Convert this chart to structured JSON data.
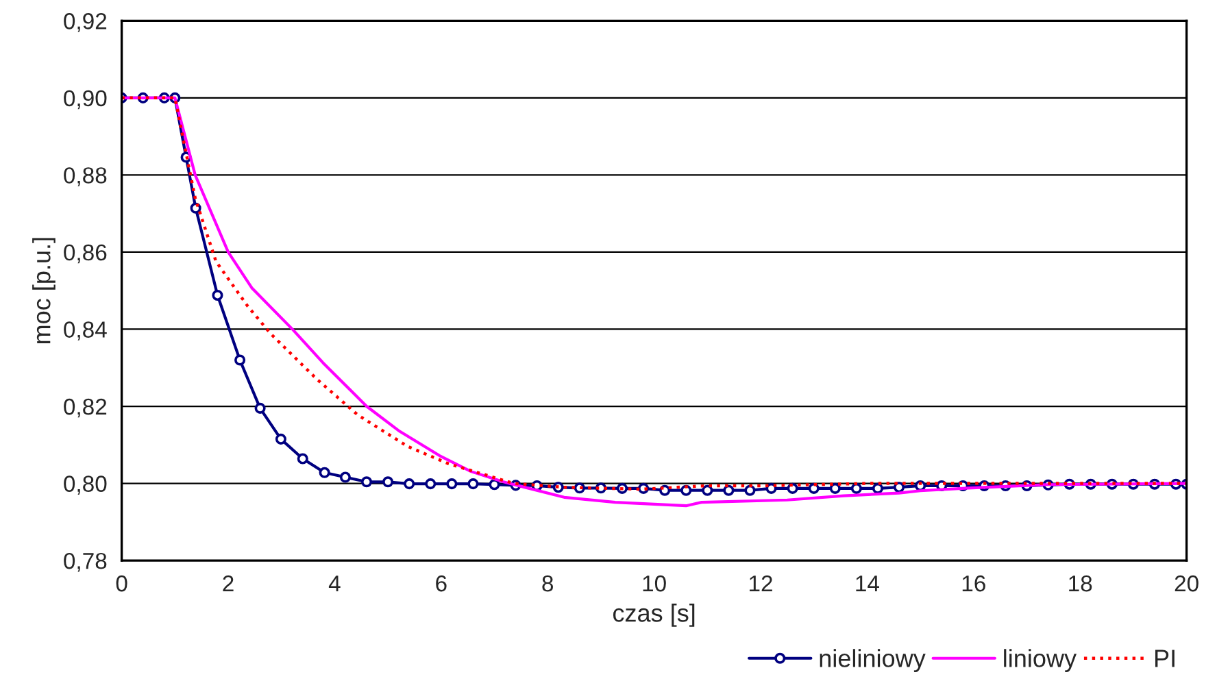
{
  "chart_data": {
    "type": "line",
    "xlabel": "czas [s]",
    "ylabel": "moc [p.u.]",
    "xlim": [
      0,
      20
    ],
    "xticks": [
      0,
      2,
      4,
      6,
      8,
      10,
      12,
      14,
      16,
      18,
      20
    ],
    "ylim": [
      0.78,
      0.92
    ],
    "yticks": [
      {
        "value": 0.78,
        "label": "0,78"
      },
      {
        "value": 0.8,
        "label": "0,80"
      },
      {
        "value": 0.82,
        "label": "0,82"
      },
      {
        "value": 0.84,
        "label": "0,84"
      },
      {
        "value": 0.86,
        "label": "0,86"
      },
      {
        "value": 0.88,
        "label": "0,88"
      },
      {
        "value": 0.9,
        "label": "0,90"
      },
      {
        "value": 0.92,
        "label": "0,92"
      }
    ],
    "grid": "y",
    "legend": "bottom right",
    "series": [
      {
        "name": "nieliniowy",
        "color": "#000080",
        "marker": "circle",
        "line_style": "solid",
        "x": [
          0,
          0.4,
          0.8,
          1.0,
          1.21,
          1.39,
          1.8,
          2.22,
          2.6,
          2.99,
          3.4,
          3.81,
          4.2,
          4.6,
          5.0,
          5.4,
          5.8,
          6.2,
          6.6,
          7.0,
          7.4,
          7.8,
          8.2,
          8.6,
          9.0,
          9.4,
          9.8,
          10.2,
          10.6,
          11.0,
          11.4,
          11.8,
          12.2,
          12.6,
          13.0,
          13.4,
          13.8,
          14.2,
          14.6,
          15.0,
          15.4,
          15.8,
          16.2,
          16.6,
          17.0,
          17.4,
          17.8,
          18.2,
          18.6,
          19.0,
          19.4,
          19.8,
          20.0
        ],
        "values": [
          0.9,
          0.9,
          0.9,
          0.9,
          0.8846,
          0.8714,
          0.8488,
          0.832,
          0.8195,
          0.8115,
          0.8064,
          0.8028,
          0.8016,
          0.8004,
          0.8004,
          0.7999,
          0.7999,
          0.7999,
          0.7999,
          0.7997,
          0.7995,
          0.7994,
          0.799,
          0.7988,
          0.7988,
          0.7987,
          0.7987,
          0.7982,
          0.7982,
          0.7982,
          0.7982,
          0.7982,
          0.7987,
          0.7987,
          0.7987,
          0.7987,
          0.7987,
          0.7987,
          0.799,
          0.7994,
          0.7994,
          0.7994,
          0.7994,
          0.7994,
          0.7994,
          0.7996,
          0.7998,
          0.7998,
          0.7998,
          0.7998,
          0.7998,
          0.7998,
          0.7998
        ]
      },
      {
        "name": "liniowy",
        "color": "#ff00ff",
        "marker": "none",
        "line_style": "solid",
        "x": [
          0,
          1.0,
          1.38,
          2.0,
          2.45,
          3.22,
          3.78,
          4.6,
          5.2,
          5.97,
          6.56,
          7.17,
          8.31,
          9.27,
          10.6,
          10.89,
          12.5,
          13.56,
          14.6,
          15.0,
          15.9,
          17.4,
          20.0
        ],
        "values": [
          0.9,
          0.9,
          0.88,
          0.86,
          0.8506,
          0.8398,
          0.8313,
          0.82,
          0.8137,
          0.8072,
          0.8031,
          0.8004,
          0.7964,
          0.7951,
          0.7942,
          0.7951,
          0.7957,
          0.7968,
          0.7975,
          0.7981,
          0.7988,
          0.7997,
          0.8
        ]
      },
      {
        "name": "PI",
        "color": "#ff0000",
        "marker": "none",
        "line_style": "dotted",
        "x": [
          0,
          1.0,
          1.38,
          1.77,
          2.37,
          2.8,
          3.66,
          4.43,
          5.37,
          6.14,
          7.17,
          7.36,
          8.31,
          9.75,
          10.99,
          12.1,
          14.0,
          15.9,
          20.0
        ],
        "values": [
          0.9,
          0.9,
          0.874,
          0.8576,
          0.8459,
          0.8388,
          0.8271,
          0.8178,
          0.8096,
          0.8051,
          0.8008,
          0.8,
          0.799,
          0.7985,
          0.7994,
          0.7994,
          0.8,
          0.8,
          0.8
        ]
      }
    ]
  }
}
